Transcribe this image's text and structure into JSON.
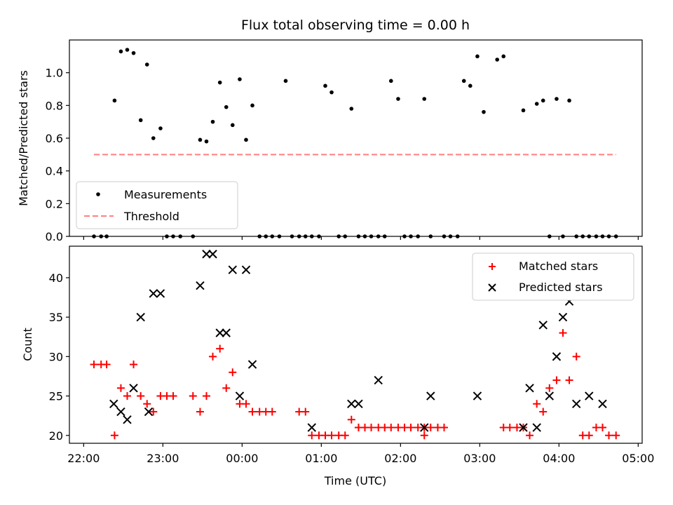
{
  "title": "Flux total observing time = 0.00 h",
  "chart_data": [
    {
      "type": "scatter",
      "title": "Flux total observing time = 0.00 h",
      "xlabel": "",
      "ylabel": "Matched/Predicted stars",
      "xlim": [
        -0.18,
        7.05
      ],
      "ylim": [
        0,
        1.2
      ],
      "yticks": [
        "0.0",
        "0.2",
        "0.4",
        "0.6",
        "0.8",
        "1.0"
      ],
      "legend": "lower-left",
      "series": [
        {
          "name": "Measurements",
          "color": "#000000",
          "marker": "dot",
          "x": [
            0.13,
            0.22,
            0.29,
            0.39,
            0.47,
            0.55,
            0.63,
            0.72,
            0.8,
            0.88,
            0.97,
            1.05,
            1.13,
            1.22,
            1.38,
            1.47,
            1.55,
            1.63,
            1.72,
            1.8,
            1.88,
            1.97,
            2.05,
            2.13,
            2.22,
            2.3,
            2.38,
            2.47,
            2.55,
            2.63,
            2.72,
            2.8,
            2.88,
            2.97,
            3.05,
            3.13,
            3.22,
            3.3,
            3.38,
            3.47,
            3.55,
            3.63,
            3.72,
            3.8,
            3.88,
            3.97,
            4.05,
            4.13,
            4.22,
            4.3,
            4.38,
            4.55,
            4.63,
            4.72,
            4.8,
            4.88,
            4.97,
            5.05,
            5.22,
            5.3,
            5.55,
            5.72,
            5.8,
            5.88,
            5.97,
            6.05,
            6.13,
            6.22,
            6.3,
            6.38,
            6.47,
            6.55,
            6.63,
            6.72
          ],
          "y": [
            0,
            0,
            0,
            0.83,
            1.13,
            1.14,
            1.12,
            0.71,
            1.05,
            0.6,
            0.66,
            0,
            0,
            0,
            0,
            0.59,
            0.58,
            0.7,
            0.94,
            0.79,
            0.68,
            0.96,
            0.59,
            0.8,
            0,
            0,
            0,
            0,
            0.95,
            0,
            0,
            0,
            0,
            0,
            0.92,
            0.88,
            0,
            0,
            0.78,
            0,
            0,
            0,
            0,
            0,
            0.95,
            0.84,
            0,
            0,
            0,
            0.84,
            0,
            0,
            0,
            0,
            0.95,
            0.92,
            1.1,
            0.76,
            1.08,
            1.1,
            0.77,
            0.81,
            0.83,
            0.0,
            0.84,
            0.0,
            0.83,
            0,
            0,
            0,
            0,
            0,
            0,
            0
          ]
        },
        {
          "name": "Threshold",
          "color": "#ff7f7f",
          "style": "dashed",
          "x": [
            0.13,
            6.72
          ],
          "y": [
            0.5,
            0.5
          ]
        }
      ]
    },
    {
      "type": "scatter",
      "xlabel": "Time (UTC)",
      "ylabel": "Count",
      "xlim": [
        -0.18,
        7.05
      ],
      "ylim": [
        19,
        44
      ],
      "yticks": [
        "20",
        "25",
        "30",
        "35",
        "40"
      ],
      "categories": [
        "22:00",
        "23:00",
        "00:00",
        "01:00",
        "02:00",
        "03:00",
        "04:00",
        "05:00"
      ],
      "legend": "top-right",
      "series": [
        {
          "name": "Matched stars",
          "color": "#ff0000",
          "marker": "plus",
          "x": [
            0.13,
            0.22,
            0.29,
            0.39,
            0.47,
            0.55,
            0.63,
            0.72,
            0.8,
            0.88,
            0.97,
            1.05,
            1.13,
            1.38,
            1.47,
            1.55,
            1.63,
            1.72,
            1.8,
            1.88,
            1.97,
            2.05,
            2.13,
            2.22,
            2.3,
            2.38,
            2.72,
            2.8,
            2.88,
            2.97,
            3.05,
            3.13,
            3.22,
            3.3,
            3.38,
            3.47,
            3.55,
            3.63,
            3.72,
            3.8,
            3.88,
            3.97,
            4.05,
            4.13,
            4.22,
            4.3,
            4.38,
            4.47,
            4.55,
            5.3,
            5.38,
            5.47,
            5.55,
            5.63,
            5.72,
            5.8,
            5.88,
            5.97,
            6.05,
            6.13,
            6.22,
            6.3,
            6.38,
            6.47,
            6.55,
            6.63,
            6.72,
            3.47,
            3.55,
            4.47,
            4.3
          ],
          "y": [
            29,
            29,
            29,
            20,
            26,
            25,
            29,
            25,
            24,
            23,
            25,
            25,
            25,
            25,
            23,
            25,
            30,
            31,
            26,
            28,
            24,
            24,
            23,
            23,
            23,
            23,
            23,
            23,
            20,
            20,
            20,
            20,
            20,
            20,
            22,
            21,
            21,
            21,
            21,
            21,
            21,
            21,
            21,
            21,
            21,
            20,
            21,
            21,
            21,
            21,
            21,
            21,
            21,
            20,
            24,
            23,
            26,
            27,
            33,
            27,
            30,
            20,
            20,
            21,
            21,
            20,
            20,
            21,
            21,
            21,
            21
          ]
        },
        {
          "name": "Predicted stars",
          "color": "#000000",
          "marker": "x",
          "x": [
            0.38,
            0.47,
            0.55,
            0.63,
            0.72,
            0.82,
            0.88,
            0.97,
            1.47,
            1.55,
            1.63,
            1.72,
            1.8,
            1.88,
            1.97,
            2.05,
            2.13,
            2.88,
            3.38,
            3.47,
            3.72,
            4.3,
            4.38,
            4.97,
            5.55,
            5.63,
            5.72,
            5.8,
            5.88,
            5.97,
            6.05,
            6.13,
            6.22,
            6.38,
            6.55
          ],
          "y": [
            24,
            23,
            22,
            26,
            35,
            23,
            38,
            38,
            39,
            43,
            43,
            33,
            33,
            41,
            25,
            41,
            29,
            21,
            24,
            24,
            27,
            21,
            25,
            25,
            21,
            26,
            21,
            34,
            25,
            30,
            35,
            37,
            24,
            25,
            24
          ]
        }
      ]
    }
  ]
}
